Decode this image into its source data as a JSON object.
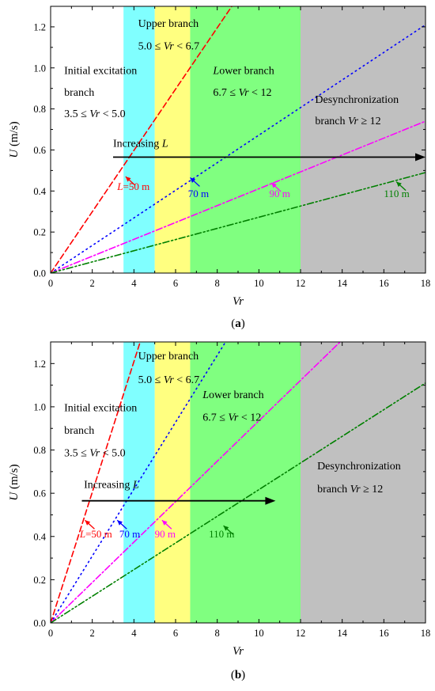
{
  "chart_data": [
    {
      "panel_label": "(a)",
      "panel_letter": "a",
      "type": "line",
      "xlabel": "Vr",
      "ylabel": "U (m/s)",
      "xlim": [
        0,
        18
      ],
      "ylim": [
        0,
        1.3
      ],
      "xticks": [
        0,
        2,
        4,
        6,
        8,
        10,
        12,
        14,
        16,
        18
      ],
      "yticks": [
        0.0,
        0.2,
        0.4,
        0.6,
        0.8,
        1.0,
        1.2
      ],
      "grid": false,
      "regions": [
        {
          "x0": 3.5,
          "x1": 5.0,
          "color": "#80ffff"
        },
        {
          "x0": 5.0,
          "x1": 6.7,
          "color": "#ffff80"
        },
        {
          "x0": 6.7,
          "x1": 12.0,
          "color": "#80ff80"
        },
        {
          "x0": 12.0,
          "x1": 18.0,
          "color": "#c0c0c0"
        }
      ],
      "series": [
        {
          "name": "L=50 m",
          "x": [
            0,
            8.7
          ],
          "y": [
            0,
            1.3
          ],
          "color": "#ff0000",
          "dash": "dash"
        },
        {
          "name": "70 m",
          "x": [
            0,
            18
          ],
          "y": [
            0,
            1.21
          ],
          "color": "#0000ff",
          "dash": "dot"
        },
        {
          "name": "90 m",
          "x": [
            0,
            18
          ],
          "y": [
            0,
            0.74
          ],
          "color": "#ff00ff",
          "dash": "dashdot"
        },
        {
          "name": "110 m",
          "x": [
            0,
            18
          ],
          "y": [
            0,
            0.49
          ],
          "color": "#008000",
          "dash": "dashdotdot"
        }
      ],
      "series_labels": [
        {
          "text": "L=50 m",
          "x": 3.2,
          "y": 0.405,
          "color": "#ff0000",
          "ax": 3.6,
          "ay": 0.47
        },
        {
          "text": "70 m",
          "x": 6.6,
          "y": 0.37,
          "color": "#0000ff",
          "ax": 6.7,
          "ay": 0.465
        },
        {
          "text": "90 m",
          "x": 10.5,
          "y": 0.37,
          "color": "#ff00ff",
          "ax": 10.6,
          "ay": 0.44
        },
        {
          "text": "110 m",
          "x": 16.0,
          "y": 0.37,
          "color": "#008000",
          "ax": 16.6,
          "ay": 0.445
        }
      ],
      "arrow": {
        "x0": 3.0,
        "x1": 18.0,
        "y": 0.565,
        "text": "Increasing L",
        "tx": 3.0,
        "ty": 0.615
      },
      "annotations": [
        {
          "lines": [
            "Initial excitation",
            "branch",
            "3.5 ≤ Vr < 5.0"
          ],
          "x": 0.65,
          "y": 0.97,
          "dy": 0.105
        },
        {
          "lines": [
            "Upper branch",
            "5.0 ≤ Vr < 6.7"
          ],
          "x": 4.2,
          "y": 1.2,
          "dy": 0.11
        },
        {
          "lines": [
            "Lower branch",
            "6.7 ≤ Vr < 12"
          ],
          "x": 7.8,
          "y": 0.97,
          "dy": 0.105
        },
        {
          "lines": [
            "Desynchronization",
            "branch   Vr ≥ 12"
          ],
          "x": 12.7,
          "y": 0.83,
          "dy": 0.105
        }
      ]
    },
    {
      "panel_label": "(b)",
      "panel_letter": "b",
      "type": "line",
      "xlabel": "Vr",
      "ylabel": "U (m/s)",
      "xlim": [
        0,
        18
      ],
      "ylim": [
        0,
        1.3
      ],
      "xticks": [
        0,
        2,
        4,
        6,
        8,
        10,
        12,
        14,
        16,
        18
      ],
      "yticks": [
        0.0,
        0.2,
        0.4,
        0.6,
        0.8,
        1.0,
        1.2
      ],
      "grid": false,
      "regions": [
        {
          "x0": 3.5,
          "x1": 5.0,
          "color": "#80ffff"
        },
        {
          "x0": 5.0,
          "x1": 6.7,
          "color": "#ffff80"
        },
        {
          "x0": 6.7,
          "x1": 12.0,
          "color": "#80ff80"
        },
        {
          "x0": 12.0,
          "x1": 18.0,
          "color": "#c0c0c0"
        }
      ],
      "series": [
        {
          "name": "L=50 m",
          "x": [
            0,
            4.3
          ],
          "y": [
            0,
            1.3
          ],
          "color": "#ff0000",
          "dash": "dash"
        },
        {
          "name": "70 m",
          "x": [
            0,
            8.4
          ],
          "y": [
            0,
            1.3
          ],
          "color": "#0000ff",
          "dash": "dot"
        },
        {
          "name": "90 m",
          "x": [
            0,
            13.9
          ],
          "y": [
            0,
            1.3
          ],
          "color": "#ff00ff",
          "dash": "dashdot"
        },
        {
          "name": "110 m",
          "x": [
            0,
            18
          ],
          "y": [
            0,
            1.11
          ],
          "color": "#008000",
          "dash": "dashdotdot"
        }
      ],
      "series_labels": [
        {
          "text": "L=50 m",
          "x": 1.4,
          "y": 0.395,
          "color": "#ff0000",
          "ax": 1.65,
          "ay": 0.475
        },
        {
          "text": "70 m",
          "x": 3.3,
          "y": 0.395,
          "color": "#0000ff",
          "ax": 3.2,
          "ay": 0.475
        },
        {
          "text": "90 m",
          "x": 5.0,
          "y": 0.395,
          "color": "#ff00ff",
          "ax": 5.35,
          "ay": 0.475
        },
        {
          "text": "110 m",
          "x": 7.6,
          "y": 0.395,
          "color": "#008000",
          "ax": 8.3,
          "ay": 0.45
        }
      ],
      "arrow": {
        "x0": 1.5,
        "x1": 10.8,
        "y": 0.565,
        "text": "Increasing L",
        "tx": 1.6,
        "ty": 0.625
      },
      "annotations": [
        {
          "lines": [
            "Upper branch",
            "5.0 ≤ Vr < 6.7"
          ],
          "x": 4.2,
          "y": 1.22,
          "dy": 0.11
        },
        {
          "lines": [
            "Initial excitation",
            "branch",
            "3.5 ≤ Vr < 5.0"
          ],
          "x": 0.65,
          "y": 0.98,
          "dy": 0.105
        },
        {
          "lines": [
            "Lower branch",
            "6.7 ≤ Vr < 12"
          ],
          "x": 7.3,
          "y": 1.04,
          "dy": 0.105
        },
        {
          "lines": [
            "Desynchronization",
            "branch   Vr ≥ 12"
          ],
          "x": 12.8,
          "y": 0.71,
          "dy": 0.105
        }
      ]
    }
  ]
}
